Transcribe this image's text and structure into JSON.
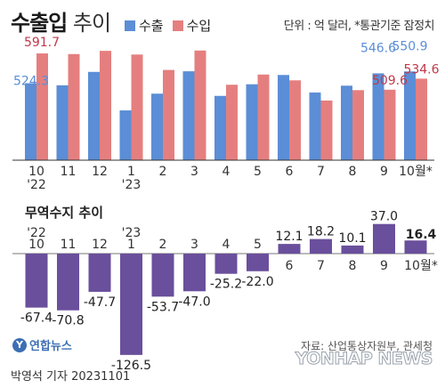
{
  "header": {
    "title_bold": "수출입",
    "title_light": "추이",
    "legend": [
      {
        "label": "수출",
        "color": "#5b8ed6"
      },
      {
        "label": "수입",
        "color": "#e57f7f"
      }
    ],
    "unit": "단위 : 억 달러, *통관기준 잠정치"
  },
  "balance_title": "무역수지 추이",
  "source": "자료: 산업통상자원부, 관세청",
  "footer": "박영석 기자  20231101",
  "logo": "연합뉴스",
  "watermark": "YONHAP NEWS",
  "colors": {
    "export": "#5b8ed6",
    "import": "#e57f7f",
    "balance": "#6a4f9c"
  },
  "chart_data": [
    {
      "type": "bar",
      "categories": [
        "10",
        "11",
        "12",
        "1",
        "2",
        "3",
        "4",
        "5",
        "6",
        "7",
        "8",
        "9",
        "10월*"
      ],
      "year_labels": [
        {
          "index": 0,
          "text": "'22"
        },
        {
          "index": 3,
          "text": "'23"
        }
      ],
      "series": [
        {
          "name": "수출",
          "values": [
            524.3,
            519.5,
            549.9,
            462.7,
            500.6,
            551.3,
            495.6,
            521.9,
            542.9,
            503.3,
            518.7,
            546.6,
            550.9
          ]
        },
        {
          "name": "수입",
          "values": [
            591.7,
            590.3,
            597.6,
            589.2,
            554.3,
            598.3,
            520.8,
            543.9,
            530.8,
            485.1,
            508.6,
            509.6,
            534.6
          ]
        }
      ],
      "data_labels": [
        {
          "series": 0,
          "index": 0,
          "text": "524.3"
        },
        {
          "series": 1,
          "index": 0,
          "text": "591.7"
        },
        {
          "series": 0,
          "index": 11,
          "text": "546.6"
        },
        {
          "series": 1,
          "index": 11,
          "text": "509.6"
        },
        {
          "series": 0,
          "index": 12,
          "text": "550.9"
        },
        {
          "series": 1,
          "index": 12,
          "text": "534.6"
        }
      ],
      "ylim": [
        350,
        620
      ]
    },
    {
      "type": "bar",
      "title": "무역수지 추이",
      "categories": [
        "10",
        "11",
        "12",
        "1",
        "2",
        "3",
        "4",
        "5",
        "6",
        "7",
        "8",
        "9",
        "10월*"
      ],
      "year_labels": [
        {
          "index": 0,
          "text": "'22"
        },
        {
          "index": 3,
          "text": "'23"
        }
      ],
      "values": [
        -67.4,
        -70.8,
        -47.7,
        -126.5,
        -53.7,
        -47.0,
        -25.2,
        -22.0,
        12.1,
        18.2,
        10.1,
        37.0,
        16.4
      ],
      "labels": [
        "-67.4",
        "-70.8",
        "-47.7",
        "-126.5",
        "-53.7",
        "-47.0",
        "-25.2",
        "-22.0",
        "12.1",
        "18.2",
        "10.1",
        "37.0",
        "16.4"
      ],
      "ylim": [
        -130,
        40
      ]
    }
  ]
}
